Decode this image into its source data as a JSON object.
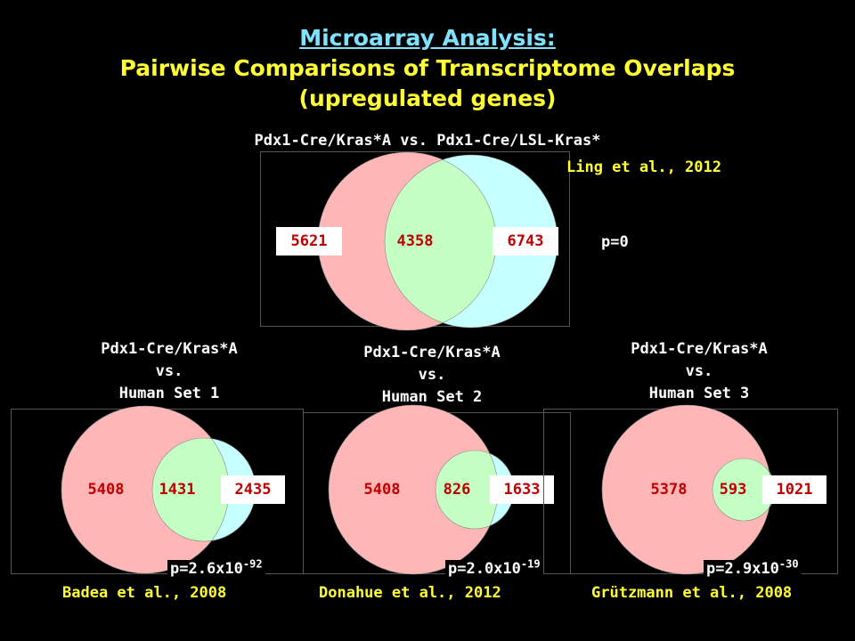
{
  "title": {
    "line1": "Microarray Analysis:",
    "line2": "Pairwise Comparisons of Transcriptome Overlaps",
    "line3": "(upregulated genes)"
  },
  "colors": {
    "left_circle": "#ffb6b6",
    "right_circle": "#c6ffff",
    "overlap": "#c4ffc4",
    "numbers": "#c00000",
    "title_cyan": "#7fe3ff",
    "title_yellow": "#ffff33"
  },
  "top": {
    "heading": "Pdx1-Cre/Kras*A vs. Pdx1-Cre/LSL-Kras*",
    "source": "Ling et al., 2012",
    "left_only": "5621",
    "overlap": "4358",
    "right_only": "6743",
    "p_text": "p=0"
  },
  "comparisons": [
    {
      "line1": "Pdx1-Cre/Kras*A",
      "line2": "vs.",
      "line3": "Human Set 1",
      "left_only": "5408",
      "overlap": "1431",
      "right_only": "2435",
      "p_base": "p=2.6x10",
      "p_exp": "-92",
      "source": "Badea et al., 2008"
    },
    {
      "line1": "Pdx1-Cre/Kras*A",
      "line2": "vs.",
      "line3": "Human Set 2",
      "left_only": "5408",
      "overlap": "826",
      "right_only": "1633",
      "p_base": "p=2.0x10",
      "p_exp": "-19",
      "source": "Donahue et al., 2012"
    },
    {
      "line1": "Pdx1-Cre/Kras*A",
      "line2": "vs.",
      "line3": "Human Set 3",
      "left_only": "5378",
      "overlap": "593",
      "right_only": "1021",
      "p_base": "p=2.9x10",
      "p_exp": "-30",
      "source": "Grützmann et al., 2008"
    }
  ]
}
